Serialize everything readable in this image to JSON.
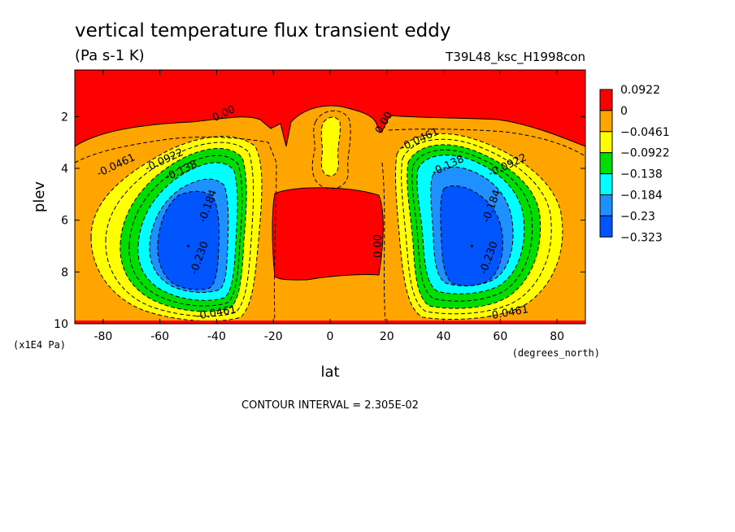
{
  "chart_data": {
    "type": "contour",
    "title": "vertical temperature flux transient eddy",
    "units": "(Pa s-1 K)",
    "run_label": "T39L48_ksc_H1998con",
    "xlabel": "lat",
    "x_unit": "(degrees_north)",
    "ylabel": "plev",
    "y_unit": "(x1E4 Pa)",
    "xlim": [
      -90,
      90
    ],
    "ylim": [
      0.2,
      10
    ],
    "y_inverted": true,
    "x_ticks": [
      -80,
      -60,
      -40,
      -20,
      0,
      20,
      40,
      60,
      80
    ],
    "y_ticks": [
      2,
      4,
      6,
      8,
      10
    ],
    "contour_interval_text": "CONTOUR INTERVAL = 2.305E-02",
    "legend_position": "right",
    "levels": [
      {
        "label": "0.0922",
        "color": "#ff0000"
      },
      {
        "label": "0",
        "color": "#ffa500"
      },
      {
        "label": "−0.0461",
        "color": "#ffff00"
      },
      {
        "label": "−0.0922",
        "color": "#00dd00"
      },
      {
        "label": "−0.138",
        "color": "#00ffff"
      },
      {
        "label": "−0.184",
        "color": "#1e90ff"
      },
      {
        "label": "−0.23",
        "color": "#0055ff"
      },
      {
        "label": "−0.323",
        "color": null
      }
    ],
    "contour_labels": [
      {
        "text": "0.00",
        "lat": -37,
        "plev": 2.0
      },
      {
        "text": "0.00",
        "lat": 20,
        "plev": 2.3
      },
      {
        "text": "0.00",
        "lat": 18,
        "plev": 7.0
      },
      {
        "text": "-0.0461",
        "lat": -75,
        "plev": 4.0
      },
      {
        "text": "-0.0922",
        "lat": -58,
        "plev": 3.8
      },
      {
        "text": "-0.138",
        "lat": -52,
        "plev": 4.2
      },
      {
        "text": "-0.184",
        "lat": -42,
        "plev": 5.5
      },
      {
        "text": "-0.230",
        "lat": -45,
        "plev": 7.5
      },
      {
        "text": "-0.0461",
        "lat": -40,
        "plev": 9.7
      },
      {
        "text": "-0.0461",
        "lat": 32,
        "plev": 3.0
      },
      {
        "text": "-0.138",
        "lat": 42,
        "plev": 4.0
      },
      {
        "text": "-0.0922",
        "lat": 63,
        "plev": 4.0
      },
      {
        "text": "-0.184",
        "lat": 58,
        "plev": 5.5
      },
      {
        "text": "-0.230",
        "lat": 57,
        "plev": 7.5
      },
      {
        "text": "-0.0461",
        "lat": 63,
        "plev": 9.7
      }
    ],
    "minima": [
      {
        "lat": -50,
        "plev": 7.0,
        "marker": "L"
      },
      {
        "lat": 50,
        "plev": 7.0,
        "marker": "L"
      }
    ]
  }
}
